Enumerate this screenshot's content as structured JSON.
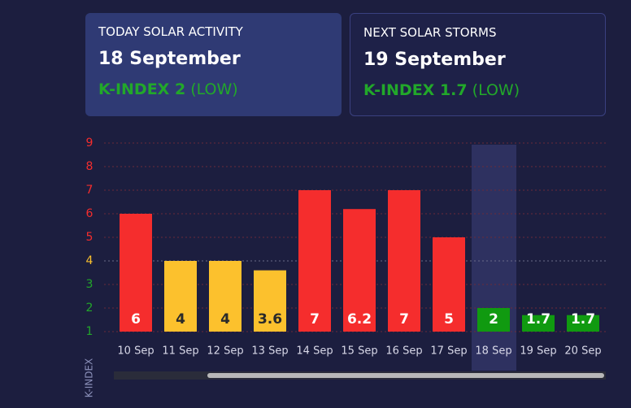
{
  "today": {
    "label": "TODAY SOLAR ACTIVITY",
    "date": "18 September",
    "kindex": "K-INDEX 2",
    "level": "(LOW)"
  },
  "next": {
    "label": "NEXT SOLAR STORMS",
    "date": "19 September",
    "kindex": "K-INDEX 1.7",
    "level": "(LOW)"
  },
  "chart_data": {
    "type": "bar",
    "y_label": "K-INDEX",
    "categories": [
      "10 Sep",
      "11 Sep",
      "12 Sep",
      "13 Sep",
      "14 Sep",
      "15 Sep",
      "16 Sep",
      "17 Sep",
      "18 Sep",
      "19 Sep",
      "20 Sep"
    ],
    "values": [
      6,
      4,
      4,
      3.6,
      7,
      6.2,
      7,
      5,
      2,
      1.7,
      1.7
    ],
    "colors": [
      "#f52d2d",
      "#fcc12d",
      "#fcc12d",
      "#fcc12d",
      "#f52d2d",
      "#f52d2d",
      "#f52d2d",
      "#f52d2d",
      "#109a10",
      "#109a10",
      "#109a10"
    ],
    "ylim": [
      1,
      9
    ],
    "yticks": [
      1,
      2,
      3,
      4,
      5,
      6,
      7,
      8,
      9
    ],
    "ytick_colors": [
      "#22a82a",
      "#22a82a",
      "#22a82a",
      "#fcc12d",
      "#f52d2d",
      "#f52d2d",
      "#f52d2d",
      "#f52d2d",
      "#f52d2d"
    ],
    "grid": true
  }
}
